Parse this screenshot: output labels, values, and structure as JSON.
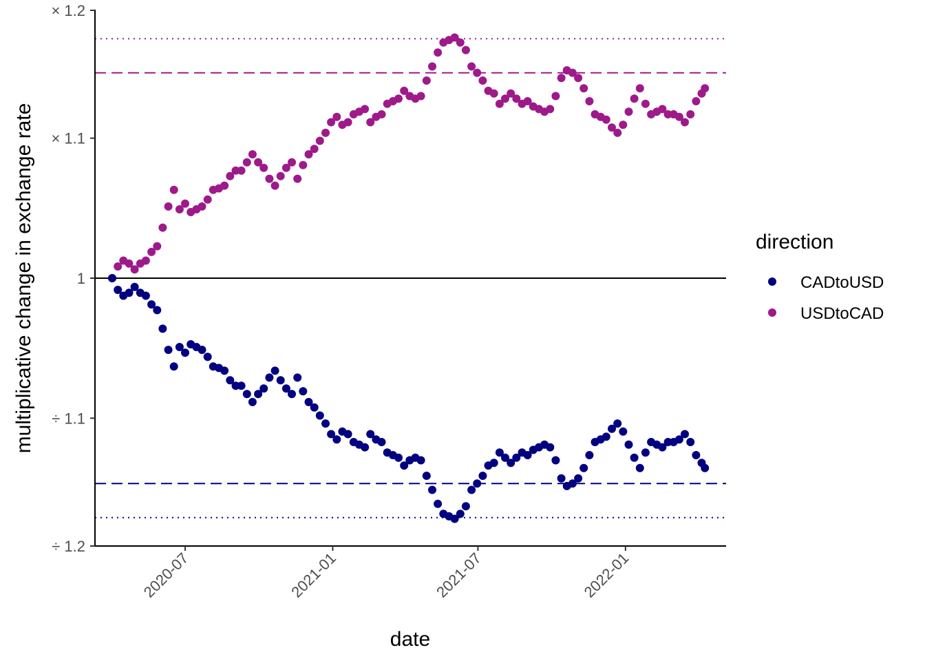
{
  "chart_data": {
    "type": "scatter",
    "title": "",
    "xlabel": "date",
    "ylabel": "multiplicative change in exchange rate",
    "x_range": [
      "2020-04-01",
      "2022-04-15"
    ],
    "x_ticks": [
      "2020-07",
      "2021-01",
      "2021-07",
      "2022-01"
    ],
    "y_tick_labels": [
      "× 1.2",
      "× 1.1",
      "1",
      "÷ 1.1",
      "÷ 1.2"
    ],
    "y_tick_values": [
      1.2,
      1.1,
      1.0,
      -1.1,
      -1.2
    ],
    "y_scale": "log multiplicative change (× above, ÷ below)",
    "grid": false,
    "legend": {
      "title": "direction",
      "position": "right",
      "entries": [
        "CADtoUSD",
        "USDtoCAD"
      ]
    },
    "colors": {
      "CADtoUSD": "#000080",
      "USDtoCAD": "#9E1A8A"
    },
    "reference_lines": [
      {
        "value": 1.0,
        "style": "solid",
        "color": "#000000"
      },
      {
        "value": 1.15,
        "style": "dashed",
        "color": "#9E1A8A"
      },
      {
        "value": 1.177,
        "style": "dotted",
        "color": "#9E1A8A"
      },
      {
        "value": -1.15,
        "style": "dashed",
        "color": "#000080"
      },
      {
        "value": -1.177,
        "style": "dotted",
        "color": "#000080"
      }
    ],
    "series": [
      {
        "name": "USDtoCAD",
        "points": [
          [
            "2020-04-01",
            1.0
          ],
          [
            "2020-04-08",
            1.008
          ],
          [
            "2020-04-15",
            1.012
          ],
          [
            "2020-04-22",
            1.01
          ],
          [
            "2020-04-29",
            1.006
          ],
          [
            "2020-05-06",
            1.01
          ],
          [
            "2020-05-13",
            1.012
          ],
          [
            "2020-05-20",
            1.018
          ],
          [
            "2020-05-27",
            1.022
          ],
          [
            "2020-06-03",
            1.035
          ],
          [
            "2020-06-10",
            1.05
          ],
          [
            "2020-06-17",
            1.062
          ],
          [
            "2020-06-24",
            1.048
          ],
          [
            "2020-07-01",
            1.052
          ],
          [
            "2020-07-08",
            1.046
          ],
          [
            "2020-07-15",
            1.048
          ],
          [
            "2020-07-22",
            1.05
          ],
          [
            "2020-07-29",
            1.055
          ],
          [
            "2020-08-05",
            1.062
          ],
          [
            "2020-08-12",
            1.063
          ],
          [
            "2020-08-19",
            1.065
          ],
          [
            "2020-08-26",
            1.072
          ],
          [
            "2020-09-02",
            1.076
          ],
          [
            "2020-09-09",
            1.076
          ],
          [
            "2020-09-16",
            1.082
          ],
          [
            "2020-09-23",
            1.088
          ],
          [
            "2020-09-30",
            1.082
          ],
          [
            "2020-10-07",
            1.078
          ],
          [
            "2020-10-14",
            1.07
          ],
          [
            "2020-10-21",
            1.065
          ],
          [
            "2020-10-28",
            1.072
          ],
          [
            "2020-11-04",
            1.078
          ],
          [
            "2020-11-11",
            1.082
          ],
          [
            "2020-11-18",
            1.07
          ],
          [
            "2020-11-25",
            1.08
          ],
          [
            "2020-12-02",
            1.088
          ],
          [
            "2020-12-09",
            1.092
          ],
          [
            "2020-12-16",
            1.098
          ],
          [
            "2020-12-23",
            1.104
          ],
          [
            "2020-12-30",
            1.112
          ],
          [
            "2021-01-06",
            1.116
          ],
          [
            "2021-01-13",
            1.11
          ],
          [
            "2021-01-20",
            1.112
          ],
          [
            "2021-01-27",
            1.118
          ],
          [
            "2021-02-03",
            1.12
          ],
          [
            "2021-02-10",
            1.122
          ],
          [
            "2021-02-17",
            1.112
          ],
          [
            "2021-02-24",
            1.116
          ],
          [
            "2021-03-03",
            1.118
          ],
          [
            "2021-03-10",
            1.126
          ],
          [
            "2021-03-17",
            1.128
          ],
          [
            "2021-03-24",
            1.13
          ],
          [
            "2021-03-31",
            1.136
          ],
          [
            "2021-04-07",
            1.132
          ],
          [
            "2021-04-14",
            1.13
          ],
          [
            "2021-04-21",
            1.132
          ],
          [
            "2021-04-28",
            1.144
          ],
          [
            "2021-05-05",
            1.155
          ],
          [
            "2021-05-12",
            1.166
          ],
          [
            "2021-05-19",
            1.174
          ],
          [
            "2021-05-26",
            1.176
          ],
          [
            "2021-06-02",
            1.178
          ],
          [
            "2021-06-09",
            1.174
          ],
          [
            "2021-06-16",
            1.168
          ],
          [
            "2021-06-23",
            1.155
          ],
          [
            "2021-06-30",
            1.15
          ],
          [
            "2021-07-07",
            1.144
          ],
          [
            "2021-07-14",
            1.136
          ],
          [
            "2021-07-21",
            1.134
          ],
          [
            "2021-07-28",
            1.126
          ],
          [
            "2021-08-04",
            1.13
          ],
          [
            "2021-08-11",
            1.134
          ],
          [
            "2021-08-18",
            1.13
          ],
          [
            "2021-08-25",
            1.126
          ],
          [
            "2021-09-01",
            1.128
          ],
          [
            "2021-09-08",
            1.124
          ],
          [
            "2021-09-15",
            1.122
          ],
          [
            "2021-09-22",
            1.12
          ],
          [
            "2021-09-29",
            1.122
          ],
          [
            "2021-10-06",
            1.132
          ],
          [
            "2021-10-13",
            1.146
          ],
          [
            "2021-10-20",
            1.152
          ],
          [
            "2021-10-27",
            1.15
          ],
          [
            "2021-11-03",
            1.146
          ],
          [
            "2021-11-10",
            1.138
          ],
          [
            "2021-11-17",
            1.128
          ],
          [
            "2021-11-24",
            1.118
          ],
          [
            "2021-12-01",
            1.116
          ],
          [
            "2021-12-08",
            1.114
          ],
          [
            "2021-12-15",
            1.108
          ],
          [
            "2021-12-22",
            1.104
          ],
          [
            "2021-12-29",
            1.11
          ],
          [
            "2022-01-05",
            1.12
          ],
          [
            "2022-01-12",
            1.13
          ],
          [
            "2022-01-19",
            1.138
          ],
          [
            "2022-01-26",
            1.126
          ],
          [
            "2022-02-02",
            1.118
          ],
          [
            "2022-02-09",
            1.12
          ],
          [
            "2022-02-16",
            1.122
          ],
          [
            "2022-02-23",
            1.118
          ],
          [
            "2022-03-02",
            1.118
          ],
          [
            "2022-03-09",
            1.116
          ],
          [
            "2022-03-16",
            1.112
          ],
          [
            "2022-03-23",
            1.118
          ],
          [
            "2022-03-30",
            1.128
          ],
          [
            "2022-04-06",
            1.134
          ],
          [
            "2022-04-10",
            1.138
          ]
        ]
      },
      {
        "name": "CADtoUSD",
        "points": [
          [
            "2020-04-01",
            -1.0
          ],
          [
            "2020-04-08",
            -1.008
          ],
          [
            "2020-04-15",
            -1.012
          ],
          [
            "2020-04-22",
            -1.01
          ],
          [
            "2020-04-29",
            -1.006
          ],
          [
            "2020-05-06",
            -1.01
          ],
          [
            "2020-05-13",
            -1.012
          ],
          [
            "2020-05-20",
            -1.018
          ],
          [
            "2020-05-27",
            -1.022
          ],
          [
            "2020-06-03",
            -1.035
          ],
          [
            "2020-06-10",
            -1.05
          ],
          [
            "2020-06-17",
            -1.062
          ],
          [
            "2020-06-24",
            -1.048
          ],
          [
            "2020-07-01",
            -1.052
          ],
          [
            "2020-07-08",
            -1.046
          ],
          [
            "2020-07-15",
            -1.048
          ],
          [
            "2020-07-22",
            -1.05
          ],
          [
            "2020-07-29",
            -1.055
          ],
          [
            "2020-08-05",
            -1.062
          ],
          [
            "2020-08-12",
            -1.063
          ],
          [
            "2020-08-19",
            -1.065
          ],
          [
            "2020-08-26",
            -1.072
          ],
          [
            "2020-09-02",
            -1.076
          ],
          [
            "2020-09-09",
            -1.076
          ],
          [
            "2020-09-16",
            -1.082
          ],
          [
            "2020-09-23",
            -1.088
          ],
          [
            "2020-09-30",
            -1.082
          ],
          [
            "2020-10-07",
            -1.078
          ],
          [
            "2020-10-14",
            -1.07
          ],
          [
            "2020-10-21",
            -1.065
          ],
          [
            "2020-10-28",
            -1.072
          ],
          [
            "2020-11-04",
            -1.078
          ],
          [
            "2020-11-11",
            -1.082
          ],
          [
            "2020-11-18",
            -1.07
          ],
          [
            "2020-11-25",
            -1.08
          ],
          [
            "2020-12-02",
            -1.088
          ],
          [
            "2020-12-09",
            -1.092
          ],
          [
            "2020-12-16",
            -1.098
          ],
          [
            "2020-12-23",
            -1.104
          ],
          [
            "2020-12-30",
            -1.112
          ],
          [
            "2021-01-06",
            -1.116
          ],
          [
            "2021-01-13",
            -1.11
          ],
          [
            "2021-01-20",
            -1.112
          ],
          [
            "2021-01-27",
            -1.118
          ],
          [
            "2021-02-03",
            -1.12
          ],
          [
            "2021-02-10",
            -1.122
          ],
          [
            "2021-02-17",
            -1.112
          ],
          [
            "2021-02-24",
            -1.116
          ],
          [
            "2021-03-03",
            -1.118
          ],
          [
            "2021-03-10",
            -1.126
          ],
          [
            "2021-03-17",
            -1.128
          ],
          [
            "2021-03-24",
            -1.13
          ],
          [
            "2021-03-31",
            -1.136
          ],
          [
            "2021-04-07",
            -1.132
          ],
          [
            "2021-04-14",
            -1.13
          ],
          [
            "2021-04-21",
            -1.132
          ],
          [
            "2021-04-28",
            -1.144
          ],
          [
            "2021-05-05",
            -1.155
          ],
          [
            "2021-05-12",
            -1.166
          ],
          [
            "2021-05-19",
            -1.174
          ],
          [
            "2021-05-26",
            -1.176
          ],
          [
            "2021-06-02",
            -1.178
          ],
          [
            "2021-06-09",
            -1.174
          ],
          [
            "2021-06-16",
            -1.168
          ],
          [
            "2021-06-23",
            -1.155
          ],
          [
            "2021-06-30",
            -1.15
          ],
          [
            "2021-07-07",
            -1.144
          ],
          [
            "2021-07-14",
            -1.136
          ],
          [
            "2021-07-21",
            -1.134
          ],
          [
            "2021-07-28",
            -1.126
          ],
          [
            "2021-08-04",
            -1.13
          ],
          [
            "2021-08-11",
            -1.134
          ],
          [
            "2021-08-18",
            -1.13
          ],
          [
            "2021-08-25",
            -1.126
          ],
          [
            "2021-09-01",
            -1.128
          ],
          [
            "2021-09-08",
            -1.124
          ],
          [
            "2021-09-15",
            -1.122
          ],
          [
            "2021-09-22",
            -1.12
          ],
          [
            "2021-09-29",
            -1.122
          ],
          [
            "2021-10-06",
            -1.132
          ],
          [
            "2021-10-13",
            -1.146
          ],
          [
            "2021-10-20",
            -1.152
          ],
          [
            "2021-10-27",
            -1.15
          ],
          [
            "2021-11-03",
            -1.146
          ],
          [
            "2021-11-10",
            -1.138
          ],
          [
            "2021-11-17",
            -1.128
          ],
          [
            "2021-11-24",
            -1.118
          ],
          [
            "2021-12-01",
            -1.116
          ],
          [
            "2021-12-08",
            -1.114
          ],
          [
            "2021-12-15",
            -1.108
          ],
          [
            "2021-12-22",
            -1.104
          ],
          [
            "2021-12-29",
            -1.11
          ],
          [
            "2022-01-05",
            -1.12
          ],
          [
            "2022-01-12",
            -1.13
          ],
          [
            "2022-01-19",
            -1.138
          ],
          [
            "2022-01-26",
            -1.126
          ],
          [
            "2022-02-02",
            -1.118
          ],
          [
            "2022-02-09",
            -1.12
          ],
          [
            "2022-02-16",
            -1.122
          ],
          [
            "2022-02-23",
            -1.118
          ],
          [
            "2022-03-02",
            -1.118
          ],
          [
            "2022-03-09",
            -1.116
          ],
          [
            "2022-03-16",
            -1.112
          ],
          [
            "2022-03-23",
            -1.118
          ],
          [
            "2022-03-30",
            -1.128
          ],
          [
            "2022-04-06",
            -1.134
          ],
          [
            "2022-04-10",
            -1.138
          ]
        ]
      }
    ]
  }
}
